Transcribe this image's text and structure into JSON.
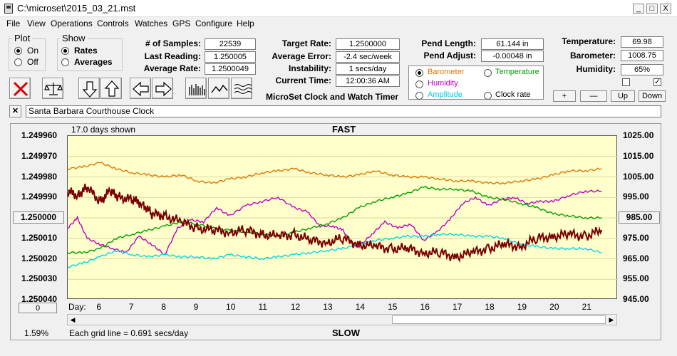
{
  "window": {
    "title": "C:\\microset\\2015_03_21.mst",
    "minimize": "_",
    "maximize": "□",
    "close": "X"
  },
  "menu": [
    "File",
    "View",
    "Operations",
    "Controls",
    "Watches",
    "GPS",
    "Configure",
    "Help"
  ],
  "plot_group": {
    "title": "Plot",
    "options": [
      "On",
      "Off"
    ],
    "selected": "On"
  },
  "show_group": {
    "title": "Show",
    "options": [
      "Rates",
      "Averages"
    ],
    "selected": "Rates"
  },
  "stats": {
    "samples_label": "# of Samples:",
    "samples": "22539",
    "last_label": "Last Reading:",
    "last": "1.250005",
    "avg_label": "Average Rate:",
    "avg": "1.2500049",
    "target_label": "Target Rate:",
    "target": "1.2500000",
    "err_label": "Average Error:",
    "err": "-2.4 sec/week",
    "instab_label": "Instability:",
    "instab": "1 secs/day",
    "time_label": "Current Time:",
    "time": "12:00:36 AM",
    "pend_len_label": "Pend Length:",
    "pend_len": "61.144 in",
    "pend_adj_label": "Pend Adjust:",
    "pend_adj": "-0.00048 in",
    "temp_label": "Temperature:",
    "temp": "69.98",
    "baro_label": "Barometer:",
    "baro": "1008.75",
    "hum_label": "Humidity:",
    "hum": "65%"
  },
  "app_caption": "MicroSet Clock and Watch Timer",
  "env_options": [
    {
      "label": "Barometer",
      "color": "#e07800",
      "selected": true
    },
    {
      "label": "Temperature",
      "color": "#00a000",
      "selected": false
    },
    {
      "label": "Humidity",
      "color": "#c000c0",
      "selected": false
    },
    {
      "label": "Clock rate",
      "color": "#000000",
      "selected": false
    },
    {
      "label": "Amplitude",
      "color": "#00c8e0",
      "selected": false
    }
  ],
  "adjust_buttons": [
    "+",
    "—",
    "Up",
    "Down"
  ],
  "checkboxes": [
    false,
    true
  ],
  "description": "Santa Barbara Courthouse Clock",
  "chart": {
    "days_shown": "17.0 days shown",
    "top_label": "FAST",
    "bottom_label": "SLOW",
    "grid_note": "Each grid line = 0.691 secs/day",
    "percent": "1.59%",
    "left_value_button": "1.250000",
    "right_value_button": "985.00",
    "zero_button": "0",
    "day_label": "Day:"
  },
  "chart_data": {
    "type": "line",
    "title": "",
    "left_axis": {
      "ticks": [
        "1.249960",
        "1.249970",
        "1.249980",
        "1.249990",
        "1.250000",
        "1.250010",
        "1.250020",
        "1.250030",
        "1.250040"
      ],
      "range": [
        1.24996,
        1.25004
      ],
      "inverted": true
    },
    "right_axis": {
      "ticks": [
        "1025.00",
        "1015.00",
        "1005.00",
        "995.00",
        "985.00",
        "975.00",
        "965.00",
        "955.00",
        "945.00"
      ],
      "range": [
        945,
        1025
      ]
    },
    "x_ticks": [
      "6",
      "7",
      "8",
      "9",
      "10",
      "11",
      "12",
      "13",
      "14",
      "15",
      "16",
      "17",
      "18",
      "19",
      "20",
      "21"
    ],
    "x_range": [
      5,
      22
    ],
    "series": [
      {
        "name": "Barometer",
        "color": "#e07800",
        "axis": "right",
        "x": [
          5,
          5.5,
          6,
          6.5,
          7,
          7.5,
          8,
          8.5,
          9,
          9.5,
          10,
          10.5,
          11,
          11.5,
          12,
          12.5,
          13,
          13.5,
          14,
          14.5,
          15,
          15.5,
          16,
          16.5,
          17,
          17.5,
          18,
          18.5,
          19,
          19.5,
          20,
          20.5,
          21,
          21.5
        ],
        "y": [
          1009,
          1010,
          1012,
          1009,
          1007,
          1006,
          1005,
          1006,
          1003,
          1002,
          1004,
          1005,
          1007,
          1008,
          1009,
          1007,
          1006,
          1005,
          1006,
          1008,
          1006,
          1005,
          1005,
          1004,
          1003,
          1003,
          1002,
          1002,
          1003,
          1004,
          1006,
          1008,
          1008,
          1009
        ]
      },
      {
        "name": "Humidity",
        "color": "#c000c0",
        "axis": "right",
        "x": [
          5,
          5.3,
          5.6,
          6,
          6.4,
          6.8,
          7.2,
          7.6,
          8,
          8.4,
          8.8,
          9.2,
          9.6,
          10,
          10.5,
          11,
          11.5,
          12,
          12.4,
          12.8,
          13.2,
          13.5,
          13.8,
          14,
          14.4,
          14.8,
          15.2,
          15.6,
          16,
          16.4,
          16.8,
          17.2,
          17.6,
          18,
          18.4,
          18.8,
          19.2,
          19.6,
          20,
          20.5,
          21,
          21.5
        ],
        "y": [
          980,
          985,
          975,
          972,
          970,
          968,
          976,
          972,
          967,
          980,
          984,
          983,
          990,
          986,
          991,
          993,
          995,
          990,
          988,
          981,
          981,
          979,
          972,
          971,
          977,
          983,
          980,
          982,
          974,
          978,
          984,
          992,
          995,
          991,
          994,
          995,
          992,
          993,
          993,
          996,
          998,
          998
        ]
      },
      {
        "name": "Temperature",
        "color": "#00a000",
        "axis": "right",
        "x": [
          5,
          5.5,
          6,
          6.5,
          7,
          7.5,
          8,
          8.5,
          9,
          9.5,
          10,
          10.5,
          11,
          11.5,
          12,
          12.5,
          13,
          13.5,
          14,
          14.5,
          15,
          15.5,
          16,
          16.5,
          17,
          17.5,
          18,
          18.5,
          19,
          19.5,
          20,
          20.5,
          21,
          21.5
        ],
        "y": [
          968,
          968,
          970,
          975,
          977,
          979,
          981,
          983,
          982,
          980,
          979,
          978,
          977,
          976,
          978,
          980,
          982,
          985,
          990,
          993,
          995,
          997,
          1000,
          999,
          999,
          998,
          995,
          994,
          992,
          990,
          987,
          986,
          985,
          985
        ]
      },
      {
        "name": "Amplitude",
        "color": "#00d8e8",
        "axis": "right",
        "x": [
          5,
          5.5,
          6,
          6.5,
          7,
          7.5,
          8,
          8.5,
          9,
          9.5,
          10,
          10.5,
          11,
          11.5,
          12,
          12.5,
          13,
          13.5,
          14,
          14.5,
          15,
          15.5,
          16,
          16.5,
          17,
          17.5,
          18,
          18.5,
          19,
          19.5,
          20,
          20.5,
          21,
          21.5
        ],
        "y": [
          961,
          963,
          966,
          969,
          967,
          966,
          967,
          966,
          966,
          965,
          967,
          966,
          965,
          966,
          967,
          968,
          969,
          970,
          972,
          974,
          975,
          976,
          976,
          977,
          977,
          976,
          976,
          975,
          972,
          971,
          970,
          970,
          970,
          968
        ]
      },
      {
        "name": "Clock rate",
        "color": "#7a0000",
        "axis": "left",
        "x": [
          5,
          5.3,
          5.6,
          6,
          6.3,
          6.6,
          7,
          7.3,
          7.6,
          8,
          8.5,
          9,
          9.5,
          10,
          10.5,
          11,
          11.5,
          12,
          12.5,
          13,
          13.5,
          14,
          14.5,
          15,
          15.5,
          16,
          16.5,
          17,
          17.5,
          18,
          18.5,
          19,
          19.5,
          20,
          20.5,
          21,
          21.5
        ],
        "y": [
          1.249987,
          1.249989,
          1.249985,
          1.249992,
          1.249987,
          1.24999,
          1.249991,
          1.249993,
          1.249998,
          1.249999,
          1.250002,
          1.250005,
          1.250006,
          1.250007,
          1.250006,
          1.250008,
          1.250009,
          1.250008,
          1.250011,
          1.250012,
          1.25001,
          1.250013,
          1.250014,
          1.250015,
          1.250015,
          1.250017,
          1.250017,
          1.250019,
          1.250017,
          1.250015,
          1.250013,
          1.250014,
          1.25001,
          1.250009,
          1.250008,
          1.250009,
          1.250006
        ]
      }
    ]
  }
}
